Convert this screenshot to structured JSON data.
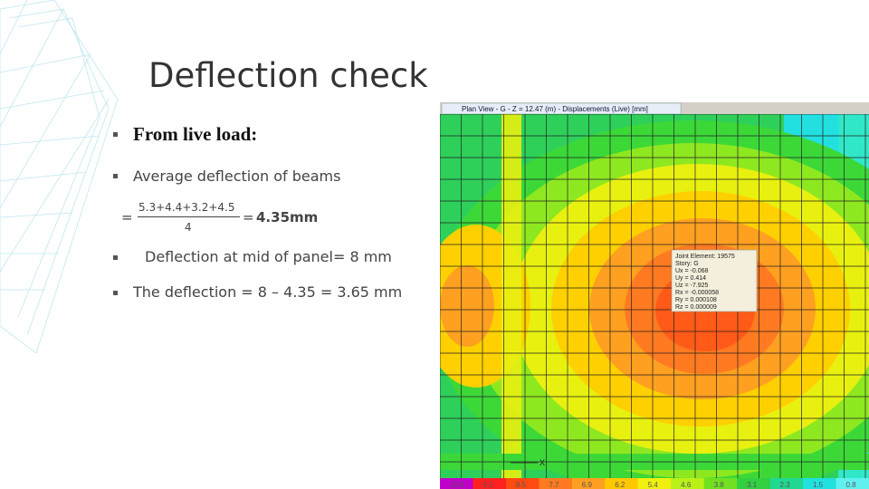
{
  "header": {
    "title": "Deflection check"
  },
  "bullets": {
    "heading": "From live load:",
    "item1": "Average deflection of beams",
    "formula": {
      "equals": "=",
      "numerator": "5.3+4.4+3.2+4.5",
      "denominator": "4",
      "result_equals": "=",
      "result": "4.35mm"
    },
    "item2": "Deflection at mid of panel= 8 mm",
    "item3": "The deflection = 8 – 4.35 = 3.65 mm"
  },
  "screenshot": {
    "tab_title": "Plan View - G - Z = 12.47 (m)  - Displacements (Live)  [mm]",
    "tooltip": [
      "Joint Element: 19575",
      "Story: G",
      "Ux = -0.068",
      "Uy = 0.414",
      "Uz = -7.925",
      "Rx = -0.000058",
      "Ry = 0.000108",
      "Rz = 0.000009"
    ],
    "axis_label": "X",
    "legend": [
      "10.0",
      "9.2",
      "8.5",
      "7.7",
      "6.9",
      "6.2",
      "5.4",
      "4.6",
      "3.8",
      "3.1",
      "2.3",
      "1.5",
      "0.8"
    ]
  }
}
